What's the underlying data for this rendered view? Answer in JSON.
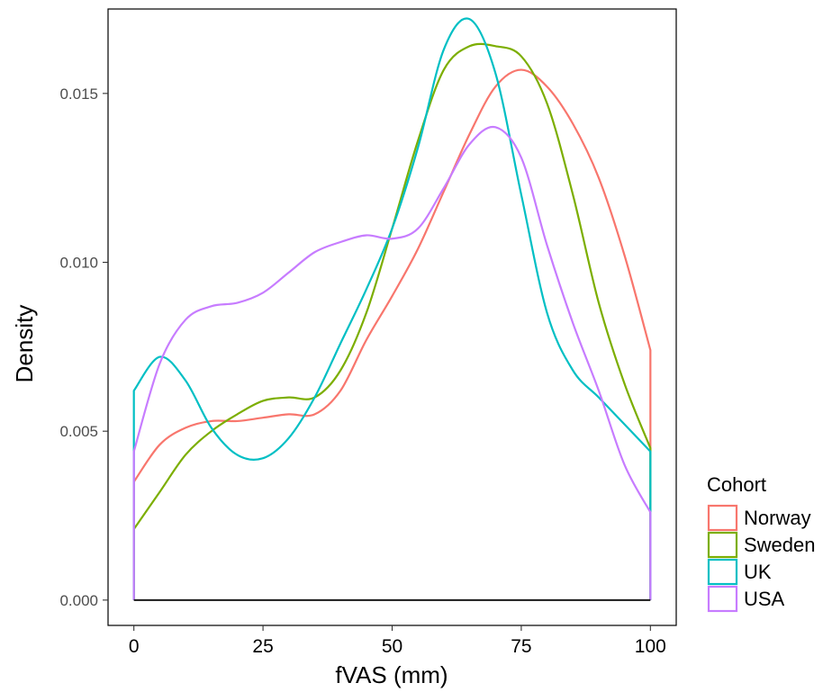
{
  "chart_data": {
    "type": "line",
    "xlabel": "fVAS (mm)",
    "ylabel": "Density",
    "xlim": [
      -5,
      105
    ],
    "ylim": [
      -0.00075,
      0.0175
    ],
    "x_ticks": [
      0,
      25,
      50,
      75,
      100
    ],
    "x_tick_labels": [
      "0",
      "25",
      "50",
      "75",
      "100"
    ],
    "y_ticks": [
      0,
      0.005,
      0.01,
      0.015
    ],
    "y_tick_labels": [
      "0.000",
      "0.005",
      "0.010",
      "0.015"
    ],
    "grid": false,
    "legend": {
      "title": "Cohort",
      "placement": "right"
    },
    "series": [
      {
        "name": "Norway",
        "color": "#F8766D",
        "x": [
          0,
          5,
          10,
          15,
          20,
          25,
          30,
          35,
          40,
          45,
          50,
          55,
          60,
          65,
          70,
          75,
          80,
          85,
          90,
          95,
          100
        ],
        "y": [
          0.0035,
          0.0046,
          0.0051,
          0.0053,
          0.0053,
          0.0054,
          0.0055,
          0.0055,
          0.0062,
          0.0077,
          0.009,
          0.0104,
          0.0121,
          0.0138,
          0.0152,
          0.0157,
          0.0152,
          0.0141,
          0.0125,
          0.0102,
          0.0074
        ]
      },
      {
        "name": "Sweden",
        "color": "#7CAE00",
        "x": [
          0,
          5,
          10,
          15,
          20,
          25,
          30,
          35,
          40,
          45,
          50,
          55,
          60,
          65,
          70,
          75,
          80,
          85,
          90,
          95,
          100
        ],
        "y": [
          0.0021,
          0.0032,
          0.0043,
          0.005,
          0.0055,
          0.0059,
          0.006,
          0.006,
          0.0068,
          0.0085,
          0.011,
          0.0136,
          0.0157,
          0.0164,
          0.0164,
          0.0161,
          0.0147,
          0.012,
          0.0088,
          0.0064,
          0.0045
        ]
      },
      {
        "name": "UK",
        "color": "#00BFC4",
        "x": [
          0,
          5,
          10,
          15,
          20,
          25,
          30,
          35,
          40,
          45,
          50,
          55,
          60,
          65,
          70,
          75,
          80,
          85,
          90,
          95,
          100
        ],
        "y": [
          0.0062,
          0.0072,
          0.0065,
          0.0051,
          0.0043,
          0.0042,
          0.0048,
          0.006,
          0.0076,
          0.0092,
          0.011,
          0.0134,
          0.0163,
          0.0172,
          0.0156,
          0.012,
          0.0085,
          0.0068,
          0.006,
          0.0052,
          0.0044
        ]
      },
      {
        "name": "USA",
        "color": "#C77CFF",
        "x": [
          0,
          5,
          10,
          15,
          20,
          25,
          30,
          35,
          40,
          45,
          50,
          55,
          60,
          65,
          70,
          75,
          80,
          85,
          90,
          95,
          100
        ],
        "y": [
          0.0044,
          0.007,
          0.0083,
          0.0087,
          0.0088,
          0.0091,
          0.0097,
          0.0103,
          0.0106,
          0.0108,
          0.0107,
          0.011,
          0.0122,
          0.0135,
          0.014,
          0.0131,
          0.0105,
          0.0082,
          0.0062,
          0.004,
          0.0026
        ]
      }
    ]
  }
}
